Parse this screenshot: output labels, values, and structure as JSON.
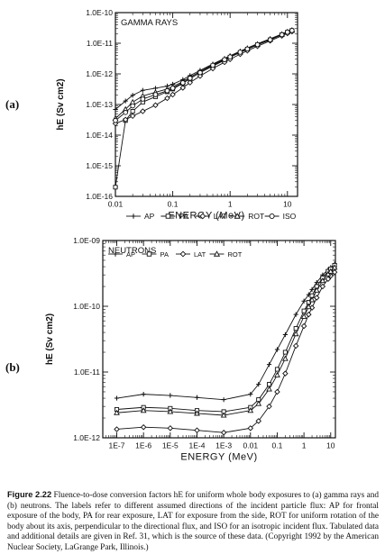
{
  "panel_labels": [
    "(a)",
    "(b)"
  ],
  "caption": {
    "figure_number": "Figure 2.22",
    "text": "Fluence-to-dose conversion factors hE for uniform whole body exposures to (a) gamma rays and (b) neutrons. The labels refer to different assumed directions of the incident particle flux: AP for frontal exposure of the body, PA for rear exposure, LAT for exposure from the side, ROT for uniform rotation of the body about its axis, perpendicular to the directional flux, and ISO for an isotropic incident flux. Tabulated data and additional details are given in Ref. 31, which is the source of these data. (Copyright 1992 by the American Nuclear Society, LaGrange Park, Illinois.)"
  },
  "chart_data": [
    {
      "type": "line",
      "panel": "(a)",
      "title": "GAMMA RAYS",
      "xlabel": "ENERGY (MeV)",
      "ylabel": "hE (Sv cm2)",
      "x_scale": "log",
      "y_scale": "log",
      "xlim": [
        0.01,
        15
      ],
      "ylim": [
        1e-16,
        1e-10
      ],
      "x_ticks": [
        {
          "v": 0.01,
          "label": "0.01"
        },
        {
          "v": 0.1,
          "label": "0.1"
        },
        {
          "v": 1,
          "label": "1"
        },
        {
          "v": 10,
          "label": "10"
        }
      ],
      "y_ticks": [
        {
          "v": 1e-16,
          "label": "1.0E-16"
        },
        {
          "v": 1e-15,
          "label": "1.0E-15"
        },
        {
          "v": 1e-14,
          "label": "1.0E-14"
        },
        {
          "v": 1e-13,
          "label": "1.0E-13"
        },
        {
          "v": 1e-12,
          "label": "1.0E-12"
        },
        {
          "v": 1e-11,
          "label": "1.0E-11"
        },
        {
          "v": 1e-10,
          "label": "1.0E-10"
        }
      ],
      "legend": {
        "placement": "bottom",
        "entries": [
          "AP",
          "PA",
          "LAT",
          "ROT",
          "ISO"
        ]
      },
      "series": [
        {
          "name": "AP",
          "marker": "plus",
          "x": [
            0.01,
            0.015,
            0.02,
            0.03,
            0.05,
            0.08,
            0.1,
            0.15,
            0.2,
            0.3,
            0.5,
            0.8,
            1,
            1.5,
            2,
            3,
            5,
            8,
            10,
            12
          ],
          "y": [
            6.9e-14,
            1.3e-13,
            2e-13,
            2.9e-13,
            3.4e-13,
            4e-13,
            4.6e-13,
            6.5e-13,
            8.8e-13,
            1.3e-12,
            2.1e-12,
            3.2e-12,
            3.9e-12,
            5.5e-12,
            7e-12,
            9.6e-12,
            1.4e-11,
            2e-11,
            2.4e-11,
            2.7e-11
          ]
        },
        {
          "name": "PA",
          "marker": "square",
          "x": [
            0.01,
            0.015,
            0.02,
            0.03,
            0.05,
            0.08,
            0.1,
            0.15,
            0.2,
            0.3,
            0.5,
            0.8,
            1,
            1.5,
            2,
            3,
            5,
            8,
            10,
            12
          ],
          "y": [
            2e-16,
            3e-14,
            6e-14,
            1.2e-13,
            1.8e-13,
            2.6e-13,
            3.2e-13,
            4.9e-13,
            7e-13,
            1.1e-12,
            1.8e-12,
            2.8e-12,
            3.5e-12,
            5e-12,
            6.4e-12,
            8.9e-12,
            1.3e-11,
            1.9e-11,
            2.3e-11,
            2.6e-11
          ]
        },
        {
          "name": "LAT",
          "marker": "diamond",
          "x": [
            0.01,
            0.015,
            0.02,
            0.03,
            0.05,
            0.08,
            0.1,
            0.15,
            0.2,
            0.3,
            0.5,
            0.8,
            1,
            1.5,
            2,
            3,
            5,
            8,
            10,
            12
          ],
          "y": [
            2.4e-14,
            3.2e-14,
            4.2e-14,
            6e-14,
            9.5e-14,
            1.6e-13,
            2.1e-13,
            3.5e-13,
            5.2e-13,
            8.5e-13,
            1.5e-12,
            2.4e-12,
            3e-12,
            4.4e-12,
            5.7e-12,
            8e-12,
            1.2e-11,
            1.75e-11,
            2.1e-11,
            2.4e-11
          ]
        },
        {
          "name": "ROT",
          "marker": "triangle",
          "x": [
            0.01,
            0.015,
            0.02,
            0.03,
            0.05,
            0.08,
            0.1,
            0.15,
            0.2,
            0.3,
            0.5,
            0.8,
            1,
            1.5,
            2,
            3,
            5,
            8,
            10,
            12
          ],
          "y": [
            3.5e-14,
            7e-14,
            1.2e-13,
            1.9e-13,
            2.5e-13,
            3.2e-13,
            3.8e-13,
            5.6e-13,
            7.8e-13,
            1.2e-12,
            2e-12,
            3e-12,
            3.7e-12,
            5.2e-12,
            6.7e-12,
            9.2e-12,
            1.35e-11,
            1.95e-11,
            2.35e-11,
            2.65e-11
          ]
        },
        {
          "name": "ISO",
          "marker": "circle",
          "x": [
            0.01,
            0.015,
            0.02,
            0.03,
            0.05,
            0.08,
            0.1,
            0.15,
            0.2,
            0.3,
            0.5,
            0.8,
            1,
            1.5,
            2,
            3,
            5,
            8,
            10,
            12
          ],
          "y": [
            3e-14,
            5.5e-14,
            9e-14,
            1.5e-13,
            2.1e-13,
            2.8e-13,
            3.4e-13,
            5.1e-13,
            7.2e-13,
            1.1e-12,
            1.9e-12,
            2.9e-12,
            3.6e-12,
            5.1e-12,
            6.5e-12,
            9e-12,
            1.3e-11,
            1.9e-11,
            2.3e-11,
            2.6e-11
          ]
        }
      ]
    },
    {
      "type": "line",
      "panel": "(b)",
      "title": "NEUTRONS",
      "xlabel": "ENERGY (MeV)",
      "ylabel": "hE (Sv cm2)",
      "x_scale": "log",
      "y_scale": "log",
      "xlim": [
        3e-08,
        15
      ],
      "ylim": [
        1e-12,
        1e-09
      ],
      "x_ticks": [
        {
          "v": 1e-07,
          "label": "1E-7"
        },
        {
          "v": 1e-06,
          "label": "1E-6"
        },
        {
          "v": 1e-05,
          "label": "1E-5"
        },
        {
          "v": 0.0001,
          "label": "1E-4"
        },
        {
          "v": 0.001,
          "label": "1E-3"
        },
        {
          "v": 0.01,
          "label": "0.01"
        },
        {
          "v": 0.1,
          "label": "0.1"
        },
        {
          "v": 1,
          "label": "1"
        },
        {
          "v": 10,
          "label": "10"
        }
      ],
      "y_ticks": [
        {
          "v": 1e-12,
          "label": "1.0E-12"
        },
        {
          "v": 1e-11,
          "label": "1.0E-11"
        },
        {
          "v": 1e-10,
          "label": "1.0E-10"
        },
        {
          "v": 1e-09,
          "label": "1.0E-09"
        }
      ],
      "legend": {
        "placement": "top",
        "entries": [
          "AP",
          "PA",
          "LAT",
          "ROT"
        ]
      },
      "series": [
        {
          "name": "AP",
          "marker": "plus",
          "x": [
            1e-07,
            1e-06,
            1e-05,
            0.0001,
            0.001,
            0.01,
            0.02,
            0.05,
            0.1,
            0.2,
            0.5,
            1,
            1.5,
            2,
            3,
            5,
            8,
            10,
            14
          ],
          "y": [
            4e-12,
            4.6e-12,
            4.4e-12,
            4.1e-12,
            3.8e-12,
            4.6e-12,
            6.5e-12,
            1.3e-11,
            2.2e-11,
            3.7e-11,
            7.5e-11,
            1.2e-10,
            1.5e-10,
            1.8e-10,
            2.3e-10,
            3e-10,
            3.6e-10,
            3.9e-10,
            4.4e-10
          ]
        },
        {
          "name": "PA",
          "marker": "square",
          "x": [
            1e-07,
            1e-06,
            1e-05,
            0.0001,
            0.001,
            0.01,
            0.02,
            0.05,
            0.1,
            0.2,
            0.5,
            1,
            1.5,
            2,
            3,
            5,
            8,
            10,
            14
          ],
          "y": [
            2.7e-12,
            2.9e-12,
            2.8e-12,
            2.6e-12,
            2.5e-12,
            2.9e-12,
            3.8e-12,
            6.5e-12,
            1.1e-11,
            2e-11,
            4.6e-11,
            8.5e-11,
            1.15e-10,
            1.45e-10,
            2e-10,
            2.7e-10,
            3.4e-10,
            3.7e-10,
            4.2e-10
          ]
        },
        {
          "name": "LAT",
          "marker": "diamond",
          "x": [
            1e-07,
            1e-06,
            1e-05,
            0.0001,
            0.001,
            0.01,
            0.02,
            0.05,
            0.1,
            0.2,
            0.5,
            1,
            1.5,
            2,
            3,
            5,
            8,
            10,
            14
          ],
          "y": [
            1.35e-12,
            1.45e-12,
            1.4e-12,
            1.3e-12,
            1.2e-12,
            1.4e-12,
            1.8e-12,
            3e-12,
            5e-12,
            9.5e-12,
            2.5e-11,
            5e-11,
            7.5e-11,
            9.5e-11,
            1.35e-10,
            2e-10,
            2.6e-10,
            2.9e-10,
            3.3e-10
          ]
        },
        {
          "name": "ROT",
          "marker": "triangle",
          "x": [
            1e-07,
            1e-06,
            1e-05,
            0.0001,
            0.001,
            0.01,
            0.02,
            0.05,
            0.1,
            0.2,
            0.5,
            1,
            1.5,
            2,
            3,
            5,
            8,
            10,
            14
          ],
          "y": [
            2.4e-12,
            2.6e-12,
            2.5e-12,
            2.35e-12,
            2.2e-12,
            2.6e-12,
            3.3e-12,
            5.5e-12,
            9e-12,
            1.6e-11,
            3.8e-11,
            7e-11,
            9.8e-11,
            1.25e-10,
            1.75e-10,
            2.45e-10,
            3.1e-10,
            3.4e-10,
            3.9e-10
          ]
        }
      ]
    }
  ]
}
